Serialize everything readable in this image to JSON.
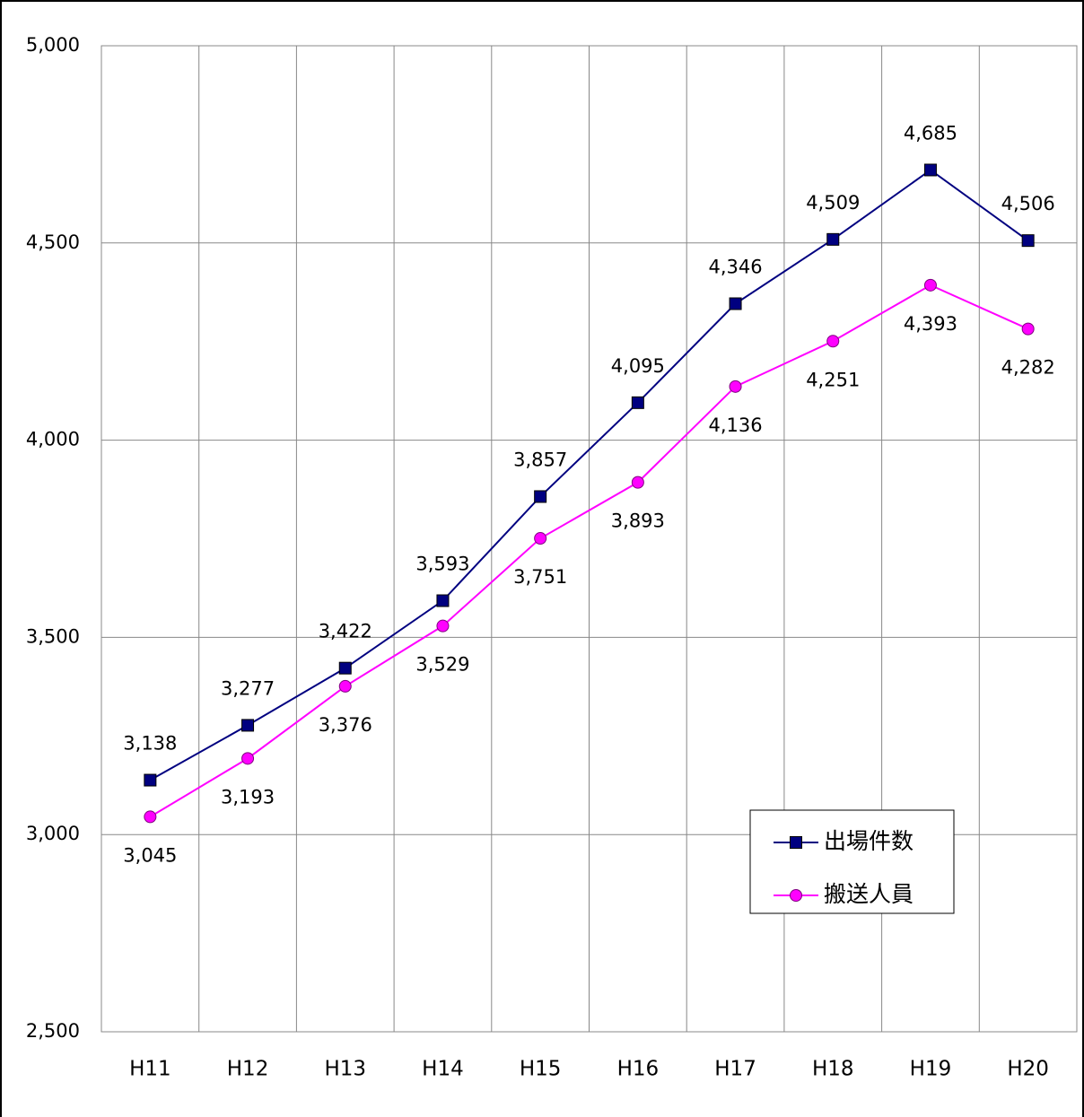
{
  "chart_data": {
    "type": "line",
    "categories": [
      "H11",
      "H12",
      "H13",
      "H14",
      "H15",
      "H16",
      "H17",
      "H18",
      "H19",
      "H20"
    ],
    "series": [
      {
        "name": "出場件数",
        "color": "#000080",
        "marker": "square",
        "values": [
          3138,
          3277,
          3422,
          3593,
          3857,
          4095,
          4346,
          4509,
          4685,
          4506
        ],
        "value_labels": [
          "3,138",
          "3,277",
          "3,422",
          "3,593",
          "3,857",
          "4,095",
          "4,346",
          "4,509",
          "4,685",
          "4,506"
        ]
      },
      {
        "name": "搬送人員",
        "color": "#ff00ff",
        "marker": "circle",
        "values": [
          3045,
          3193,
          3376,
          3529,
          3751,
          3893,
          4136,
          4251,
          4393,
          4282
        ],
        "value_labels": [
          "3,045",
          "3,193",
          "3,376",
          "3,529",
          "3,751",
          "3,893",
          "4,136",
          "4,251",
          "4,393",
          "4,282"
        ]
      }
    ],
    "ylim": [
      2500,
      5000
    ],
    "yticks": [
      {
        "value": 2500,
        "label": "2,500"
      },
      {
        "value": 3000,
        "label": "3,000"
      },
      {
        "value": 3500,
        "label": "3,500"
      },
      {
        "value": 4000,
        "label": "4,000"
      },
      {
        "value": 4500,
        "label": "4,500"
      },
      {
        "value": 5000,
        "label": "5,000"
      }
    ],
    "grid": true,
    "legend": "lower right"
  }
}
